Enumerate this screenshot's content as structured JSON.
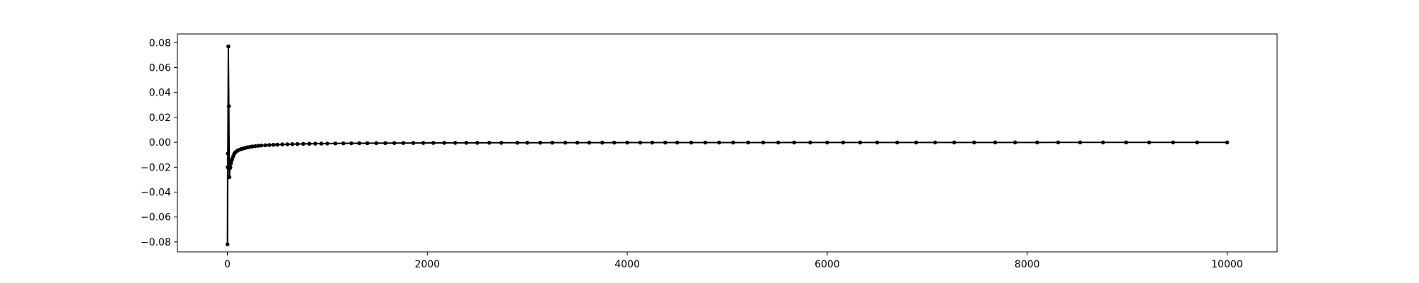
{
  "chart_data": {
    "type": "line",
    "title": "",
    "xlabel": "",
    "ylabel": "",
    "xlim": [
      -500,
      10500
    ],
    "ylim": [
      -0.088,
      0.087
    ],
    "grid": false,
    "legend": "none",
    "xticks": [
      0,
      2000,
      4000,
      6000,
      8000,
      10000
    ],
    "xtick_labels": [
      "0",
      "2000",
      "4000",
      "6000",
      "8000",
      "10000"
    ],
    "yticks": [
      -0.08,
      -0.06,
      -0.04,
      -0.02,
      0.0,
      0.02,
      0.04,
      0.06,
      0.08
    ],
    "ytick_labels": [
      "−0.08",
      "−0.06",
      "−0.04",
      "−0.02",
      "0.00",
      "0.02",
      "0.04",
      "0.06",
      "0.08"
    ],
    "series": [
      {
        "color": "#000000",
        "marker": "dot",
        "x": [
          1,
          3,
          5,
          10,
          15,
          20,
          25,
          30,
          35,
          40,
          45,
          50,
          60,
          70,
          80,
          100,
          120,
          140,
          160,
          180,
          200,
          225,
          250,
          280,
          310,
          340,
          380,
          420,
          460,
          500,
          550,
          600,
          650,
          700,
          760,
          820,
          880,
          940,
          1000,
          1080,
          1160,
          1240,
          1320,
          1400,
          1490,
          1580,
          1670,
          1760,
          1860,
          1960,
          2060,
          2170,
          2280,
          2390,
          2500,
          2620,
          2740,
          2900,
          3000,
          3130,
          3250,
          3380,
          3500,
          3620,
          3750,
          3870,
          4000,
          4130,
          4250,
          4380,
          4500,
          4640,
          4780,
          4920,
          5060,
          5210,
          5360,
          5510,
          5670,
          5830,
          6000,
          6160,
          6330,
          6500,
          6700,
          6890,
          7080,
          7270,
          7470,
          7680,
          7880,
          8100,
          8310,
          8530,
          8760,
          8990,
          9220,
          9460,
          9700,
          10000
        ],
        "y": [
          -0.082,
          -0.02,
          -0.009,
          0.077,
          0.029,
          -0.028,
          -0.021,
          -0.02,
          -0.017,
          -0.015,
          -0.014,
          -0.013,
          -0.011,
          -0.009,
          -0.008,
          -0.0068,
          -0.006,
          -0.0054,
          -0.0049,
          -0.0045,
          -0.0041,
          -0.0037,
          -0.0034,
          -0.0031,
          -0.0028,
          -0.0026,
          -0.0024,
          -0.0022,
          -0.002,
          -0.0019,
          -0.0017,
          -0.0016,
          -0.0015,
          -0.0014,
          -0.0013,
          -0.0012,
          -0.0011,
          -0.00105,
          -0.001,
          -0.00093,
          -0.00087,
          -0.00082,
          -0.00077,
          -0.00073,
          -0.00068,
          -0.00064,
          -0.00061,
          -0.00058,
          -0.00055,
          -0.00052,
          -0.00049,
          -0.00047,
          -0.00045,
          -0.00043,
          -0.00041,
          -0.00039,
          -0.00037,
          -0.00035,
          -0.00034,
          -0.00033,
          -0.00031,
          -0.0003,
          -0.00029,
          -0.00028,
          -0.00027,
          -0.00026,
          -0.00025,
          -0.00024,
          -0.00024,
          -0.00023,
          -0.00022,
          -0.00021,
          -0.00021,
          -0.0002,
          -0.0002,
          -0.00019,
          -0.00018,
          -0.00018,
          -0.00017,
          -0.00017,
          -0.00016,
          -0.00016,
          -0.00015,
          -0.00015,
          -0.00014,
          -0.00014,
          -0.00014,
          -0.00013,
          -0.00013,
          -0.00012,
          -0.00012,
          -0.00012,
          -0.00011,
          -0.00011,
          -0.00011,
          -0.0001,
          -0.0001,
          -0.0001,
          -0.0001,
          -0.0001
        ]
      }
    ]
  }
}
